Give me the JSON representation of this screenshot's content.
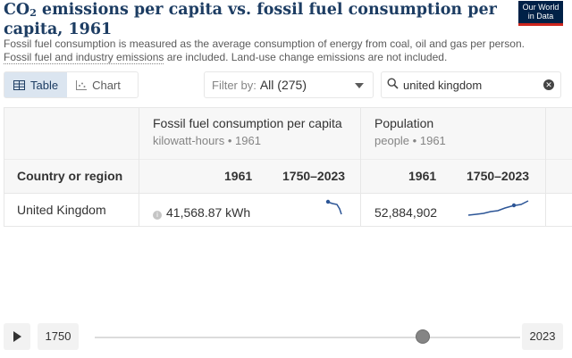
{
  "header": {
    "title_pre": "CO",
    "title_sub": "2",
    "title_post": " emissions per capita vs. fossil fuel consumption per capita, 1961",
    "logo_line1": "Our World",
    "logo_line2": "in Data",
    "subtitle_1": "Fossil fuel consumption is measured as the average consumption of energy from coal, oil and gas per person. ",
    "subtitle_link": "Fossil fuel and industry emissions",
    "subtitle_2": " are included. Land-use change emissions are not included."
  },
  "controls": {
    "tab_table": "Table",
    "tab_chart": "Chart",
    "filter_label": "Filter by:",
    "filter_value": "All (275)",
    "search_value": "united kingdom"
  },
  "table": {
    "columns": [
      {
        "title": "Fossil fuel consumption per capita",
        "unit": "kilowatt-hours",
        "year": "1961",
        "col_year": "1961",
        "col_range": "1750–2023"
      },
      {
        "title": "Population",
        "unit": "people",
        "year": "1961",
        "col_year": "1961",
        "col_range": "1750–2023"
      }
    ],
    "row_header": "Country or region",
    "rows": [
      {
        "country": "United Kingdom",
        "fossil_value": "41,568.87 kWh",
        "population_value": "52,884,902"
      }
    ],
    "separator": "•",
    "info_symbol": "i"
  },
  "timeline": {
    "start": "1750",
    "end": "2023",
    "selected_fraction": 0.77
  },
  "colors": {
    "accent": "#1d3d63",
    "sparkline": "#2c5596",
    "tab_active_bg": "#dbe5f0"
  },
  "icons": [
    "table-icon",
    "chart-icon",
    "caret-down-icon",
    "search-icon",
    "clear-icon",
    "info-icon",
    "play-icon"
  ]
}
